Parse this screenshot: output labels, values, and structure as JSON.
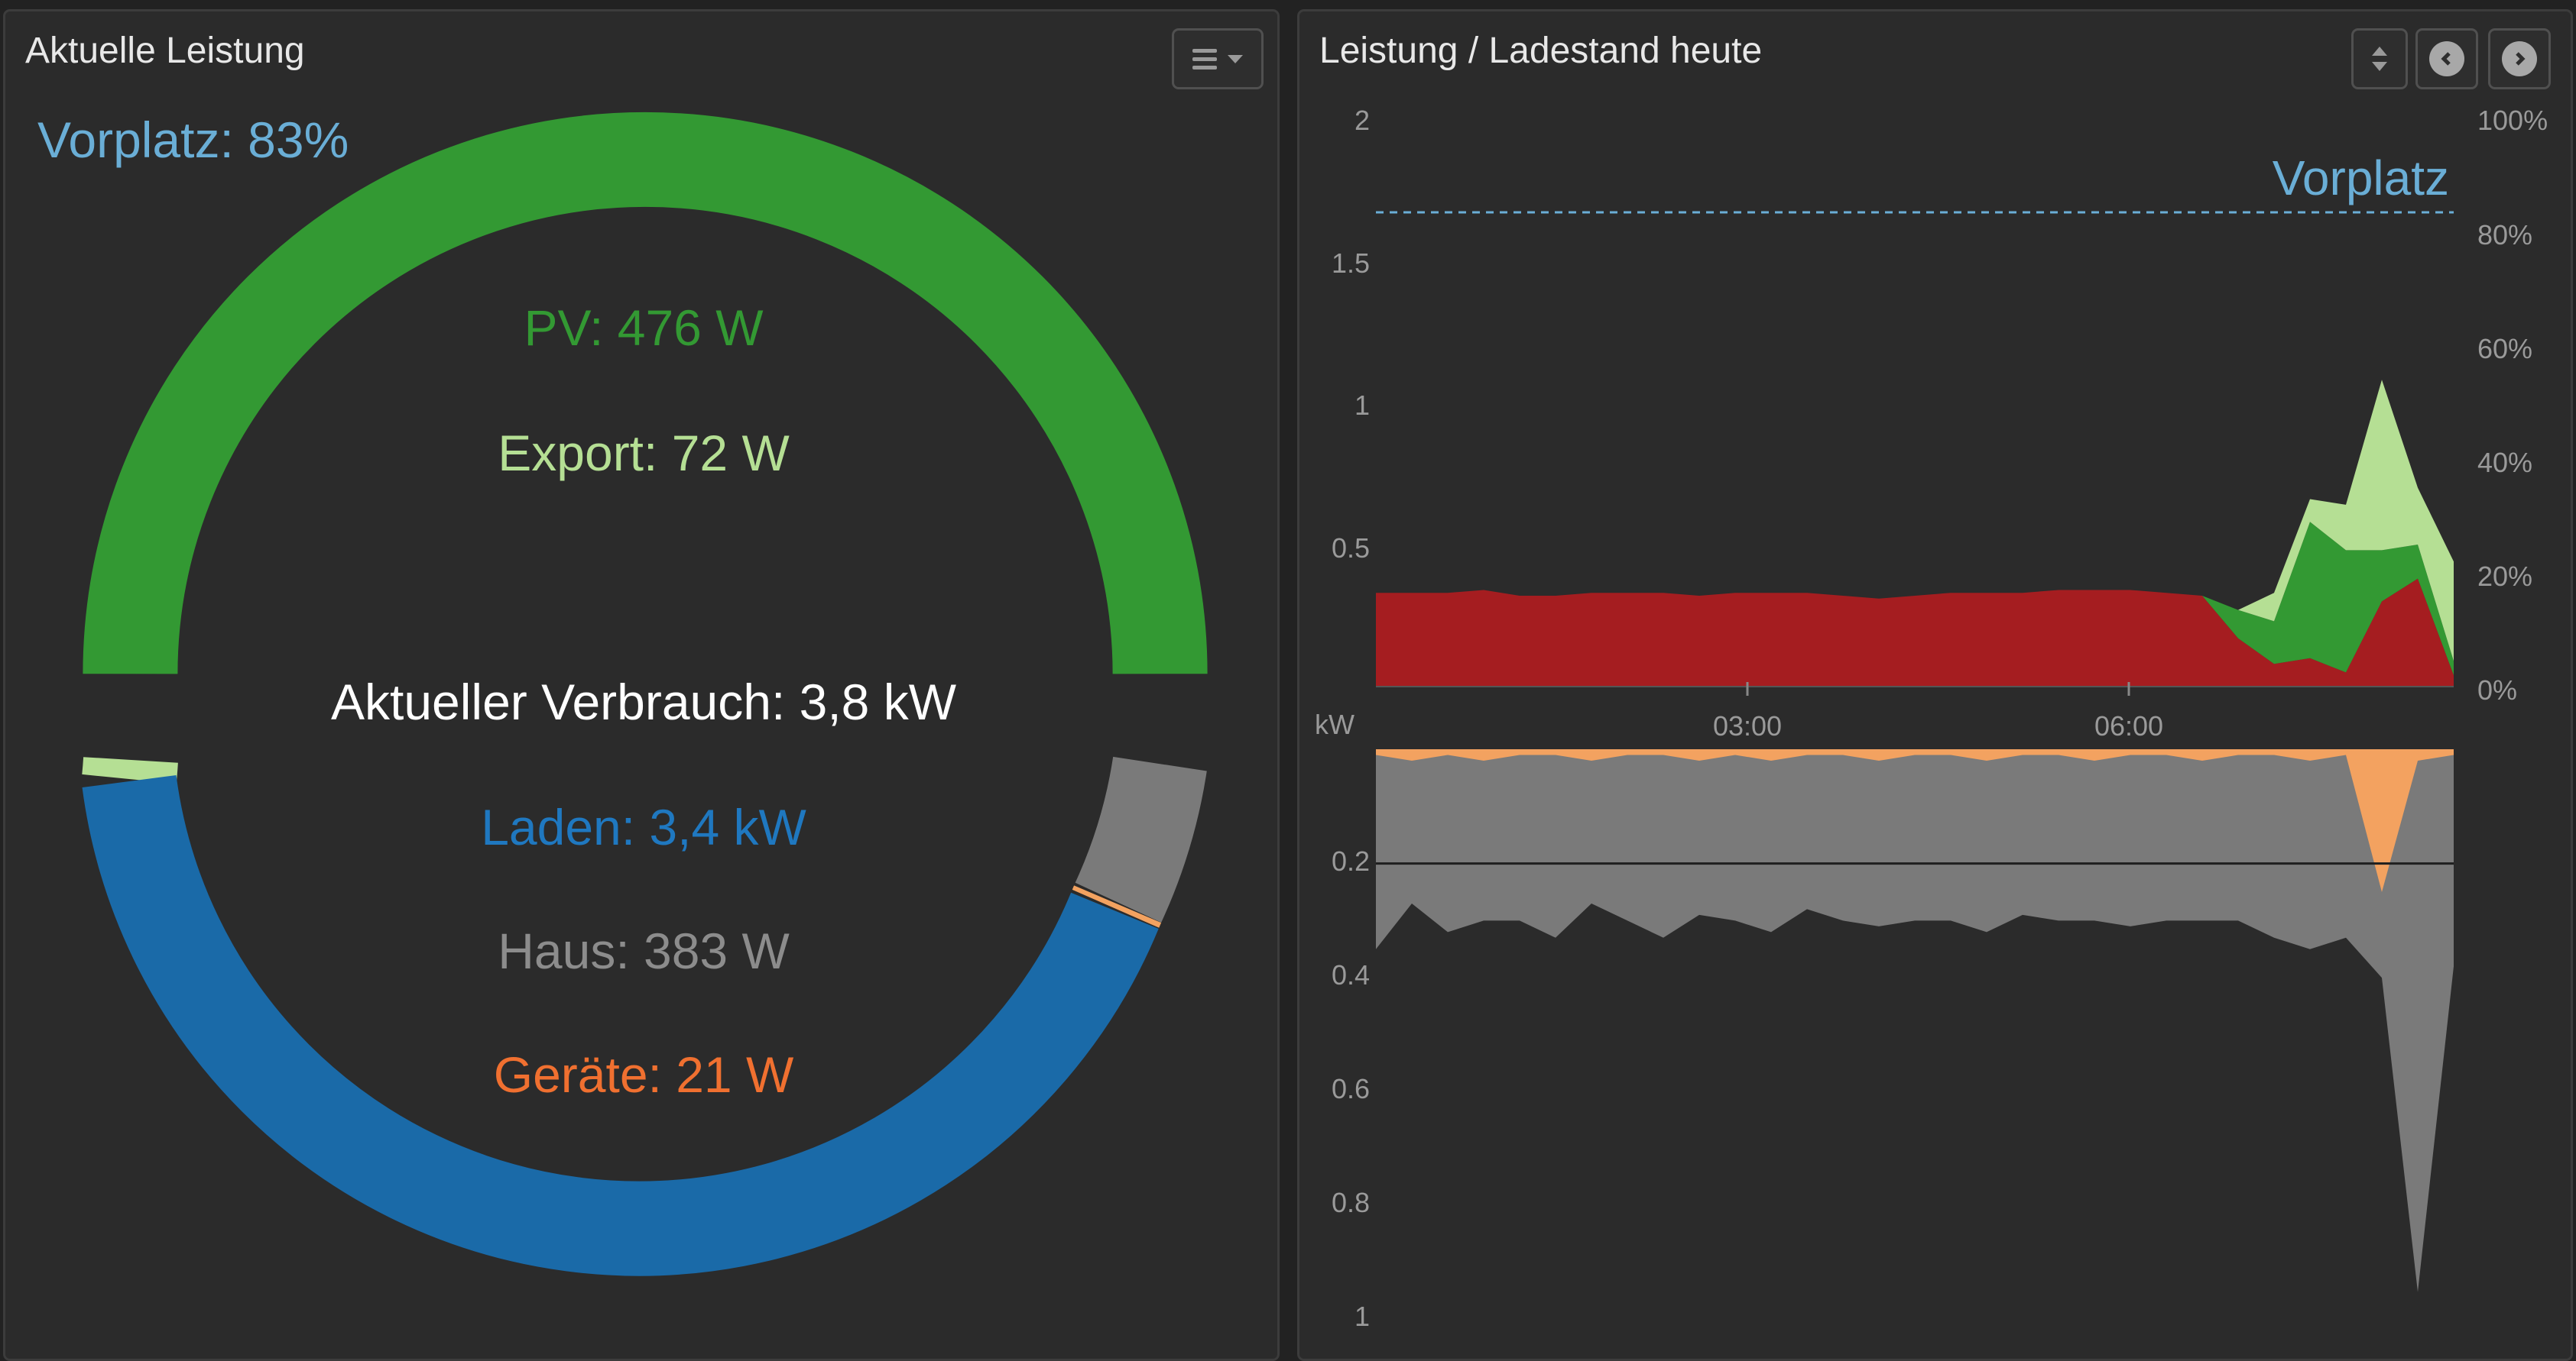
{
  "left_panel": {
    "title": "Aktuelle Leistung",
    "soc_label": "Vorplatz: 83%",
    "pv_label": "PV: 476 W",
    "export_label": "Export: 72 W",
    "verbrauch_label": "Aktueller Verbrauch: 3,8 kW",
    "laden_label": "Laden: 3,4 kW",
    "haus_label": "Haus: 383 W",
    "geraete_label": "Geräte: 21 W",
    "menu_icon": "hamburger-menu-icon"
  },
  "right_panel": {
    "title": "Leistung / Ladestand heute",
    "icons": [
      "sort-icon",
      "chevron-left-icon",
      "chevron-right-icon"
    ],
    "series_label": "Vorplatz",
    "unit_label": "kW",
    "upper_y_ticks": [
      "2",
      "1.5",
      "1",
      "0.5"
    ],
    "right_y_ticks": [
      "100%",
      "80%",
      "60%",
      "40%",
      "20%",
      "0%"
    ],
    "x_ticks": [
      "03:00",
      "06:00"
    ],
    "lower_y_ticks": [
      "0.2",
      "0.4",
      "0.6",
      "0.8",
      "1"
    ]
  },
  "colors": {
    "pv": "#339933",
    "export": "#b5df94",
    "laden": "#1a6aa8",
    "haus": "#7a7a7a",
    "geraete": "#f3a260",
    "netz": "#a51d20",
    "soc": "#6aaed6"
  },
  "chart_data": {
    "type": "area",
    "x_ticks": [
      "03:00",
      "06:00"
    ],
    "upper": {
      "unit": "kW",
      "ylim": [
        0,
        2
      ],
      "series": [
        {
          "values": [
            0.33,
            0.33,
            0.33,
            0.34,
            0.32,
            0.32,
            0.33,
            0.33,
            0.33,
            0.32,
            0.33,
            0.33,
            0.33,
            0.32,
            0.31,
            0.32,
            0.33,
            0.33,
            0.33,
            0.34,
            0.34,
            0.34,
            0.33,
            0.32,
            0.17,
            0.08,
            0.1,
            0.05,
            0.3,
            0.38,
            0.04
          ]
        },
        {
          "values": [
            0.0,
            0.0,
            0.0,
            0.0,
            0.0,
            0.0,
            0.0,
            0.0,
            0.0,
            0.0,
            0.0,
            0.0,
            0.0,
            0.0,
            0.0,
            0.0,
            0.0,
            0.0,
            0.0,
            0.0,
            0.0,
            0.0,
            0.0,
            0.0,
            0.1,
            0.15,
            0.48,
            0.43,
            0.18,
            0.12,
            0.05
          ]
        },
        {
          "values": [
            0.0,
            0.0,
            0.0,
            0.0,
            0.0,
            0.0,
            0.0,
            0.0,
            0.0,
            0.0,
            0.0,
            0.0,
            0.0,
            0.0,
            0.0,
            0.0,
            0.0,
            0.0,
            0.0,
            0.0,
            0.0,
            0.0,
            0.0,
            0.0,
            0.0,
            0.1,
            0.08,
            0.16,
            0.6,
            0.2,
            0.35
          ]
        }
      ],
      "soc_line": {
        "name": "Vorplatz",
        "value": 83,
        "unit": "%"
      }
    },
    "lower": {
      "unit": "kW",
      "ylim": [
        0,
        1
      ],
      "series": [
        {
          "values": [
            0.35,
            0.27,
            0.32,
            0.3,
            0.3,
            0.33,
            0.27,
            0.3,
            0.33,
            0.29,
            0.3,
            0.32,
            0.28,
            0.3,
            0.31,
            0.3,
            0.3,
            0.32,
            0.29,
            0.3,
            0.3,
            0.31,
            0.3,
            0.3,
            0.3,
            0.33,
            0.35,
            0.33,
            0.4,
            0.95,
            0.38
          ]
        },
        {
          "values": [
            0.01,
            0.02,
            0.01,
            0.02,
            0.01,
            0.01,
            0.02,
            0.01,
            0.01,
            0.02,
            0.01,
            0.02,
            0.01,
            0.01,
            0.02,
            0.01,
            0.01,
            0.02,
            0.01,
            0.01,
            0.02,
            0.01,
            0.01,
            0.02,
            0.01,
            0.01,
            0.02,
            0.01,
            0.25,
            0.02,
            0.01
          ]
        }
      ]
    }
  }
}
